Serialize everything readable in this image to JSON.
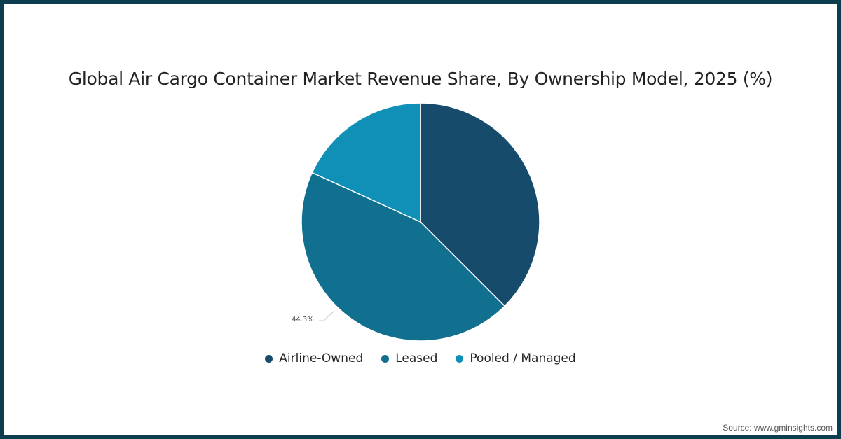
{
  "chart_data": {
    "type": "pie",
    "title": "Global Air Cargo Container Market Revenue Share, By Ownership Model, 2025 (%)",
    "categories": [
      "Airline-Owned",
      "Leased",
      "Pooled / Managed"
    ],
    "values": [
      37.5,
      44.3,
      18.2
    ],
    "colors": [
      "#164b6c",
      "#116f8f",
      "#1190b7"
    ],
    "data_labels": [
      {
        "category": "Leased",
        "text": "44.3%"
      }
    ],
    "start_angle_deg": 0,
    "direction": "clockwise",
    "legend_position": "bottom",
    "source": "Source: www.gminsights.com"
  },
  "title": "Global Air Cargo Container Market Revenue Share, By Ownership Model, 2025 (%)",
  "legend": [
    {
      "label": "Airline-Owned",
      "color": "#164b6c"
    },
    {
      "label": "Leased",
      "color": "#116f8f"
    },
    {
      "label": "Pooled / Managed",
      "color": "#1190b7"
    }
  ],
  "leased_label": "44.3%",
  "source": "Source: www.gminsights.com",
  "frame_color": "#0d3e4f"
}
